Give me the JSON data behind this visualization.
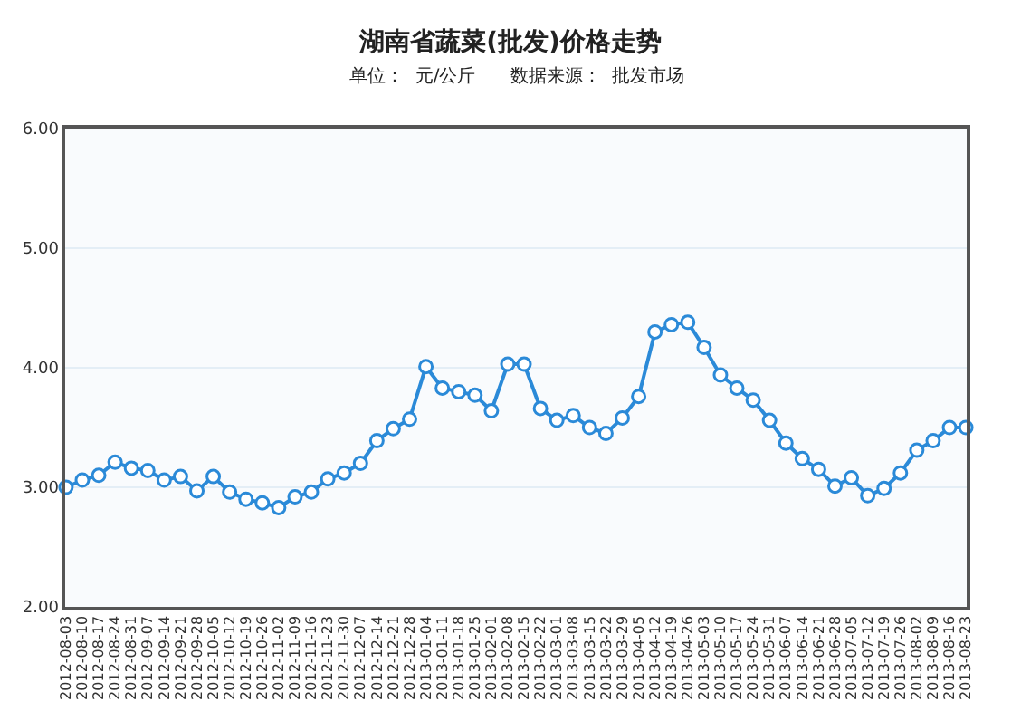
{
  "chart_data": {
    "type": "line",
    "title": "湖南省蔬菜(批发)价格走势",
    "subtitle": "单位：  元/公斤      数据来源：  批发市场",
    "categories": [
      "2012-08-03",
      "2012-08-10",
      "2012-08-17",
      "2012-08-24",
      "2012-08-31",
      "2012-09-07",
      "2012-09-14",
      "2012-09-21",
      "2012-09-28",
      "2012-10-05",
      "2012-10-12",
      "2012-10-19",
      "2012-10-26",
      "2012-11-02",
      "2012-11-09",
      "2012-11-16",
      "2012-11-23",
      "2012-11-30",
      "2012-12-07",
      "2012-12-14",
      "2012-12-21",
      "2012-12-28",
      "2013-01-04",
      "2013-01-11",
      "2013-01-18",
      "2013-01-25",
      "2013-02-01",
      "2013-02-08",
      "2013-02-15",
      "2013-02-22",
      "2013-03-01",
      "2013-03-08",
      "2013-03-15",
      "2013-03-22",
      "2013-03-29",
      "2013-04-05",
      "2013-04-12",
      "2013-04-19",
      "2013-04-26",
      "2013-05-03",
      "2013-05-10",
      "2013-05-17",
      "2013-05-24",
      "2013-05-31",
      "2013-06-07",
      "2013-06-14",
      "2013-06-21",
      "2013-06-28",
      "2013-07-05",
      "2013-07-12",
      "2013-07-19",
      "2013-07-26",
      "2013-08-02",
      "2013-08-09",
      "2013-08-16",
      "2013-08-23"
    ],
    "series": [
      {
        "color": "#2b8ad8",
        "values": [
          3.0,
          3.06,
          3.1,
          3.21,
          3.16,
          3.14,
          3.06,
          3.09,
          2.97,
          3.09,
          2.96,
          2.9,
          2.87,
          2.83,
          2.92,
          2.96,
          3.07,
          3.12,
          3.2,
          3.39,
          3.49,
          3.57,
          4.01,
          3.83,
          3.8,
          3.77,
          3.64,
          4.03,
          4.03,
          3.66,
          3.56,
          3.6,
          3.5,
          3.45,
          3.58,
          3.76,
          4.3,
          4.36,
          4.38,
          4.17,
          3.94,
          3.83,
          3.73,
          3.56,
          3.37,
          3.24,
          3.15,
          3.01,
          3.08,
          2.93,
          2.99,
          3.12,
          3.31,
          3.39,
          3.5,
          3.5
        ]
      }
    ],
    "ylim": [
      2,
      6
    ],
    "yticks": [
      {
        "value": 2,
        "label": "2.00"
      },
      {
        "value": 3,
        "label": "3.00"
      },
      {
        "value": 4,
        "label": "4.00"
      },
      {
        "value": 5,
        "label": "5.00"
      },
      {
        "value": 6,
        "label": "6.00"
      }
    ],
    "grid": "y",
    "marker": "circle",
    "line_style": "solid"
  }
}
